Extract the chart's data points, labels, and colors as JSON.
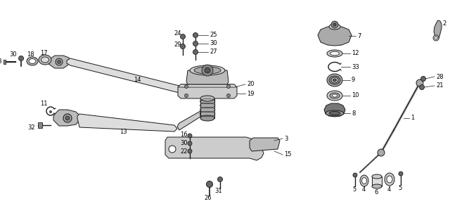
{
  "bg_color": "#ffffff",
  "line_color": "#1a1a1a",
  "fig_width": 6.4,
  "fig_height": 3.1,
  "dpi": 100
}
